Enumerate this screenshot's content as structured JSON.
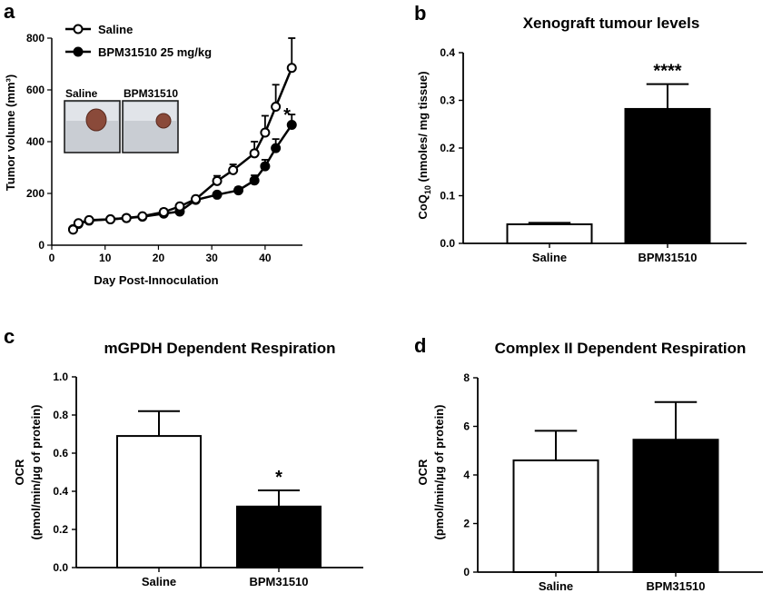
{
  "figure": {
    "panel_letters": [
      "a",
      "b",
      "c",
      "d"
    ]
  },
  "chart_data": [
    {
      "panel": "a",
      "type": "line",
      "title": "",
      "xlabel": "Day Post-Innoculation",
      "ylabel": "Tumor volume (mm³)",
      "xlim": [
        0,
        47
      ],
      "ylim": [
        0,
        800
      ],
      "xticks": [
        0,
        10,
        20,
        30,
        40
      ],
      "yticks": [
        0,
        200,
        400,
        600,
        800
      ],
      "legend_position": "top-left",
      "inset_labels": [
        "Saline",
        "BPM31510"
      ],
      "significance": "*",
      "series": [
        {
          "name": "Saline",
          "marker": "open-circle",
          "x": [
            4,
            5,
            7,
            11,
            14,
            17,
            21,
            24,
            27,
            31,
            34,
            38,
            40,
            42,
            45
          ],
          "y": [
            60,
            85,
            97,
            100,
            105,
            112,
            128,
            150,
            178,
            248,
            290,
            355,
            435,
            535,
            685
          ],
          "err": [
            5,
            8,
            8,
            8,
            8,
            8,
            12,
            10,
            12,
            20,
            22,
            45,
            65,
            85,
            115
          ]
        },
        {
          "name": "BPM31510 25 mg/kg",
          "marker": "filled-circle",
          "x": [
            4,
            5,
            7,
            11,
            14,
            17,
            21,
            24,
            27,
            31,
            35,
            38,
            40,
            42,
            45
          ],
          "y": [
            62,
            82,
            95,
            100,
            105,
            110,
            122,
            130,
            175,
            195,
            212,
            250,
            305,
            375,
            465
          ],
          "err": [
            5,
            6,
            6,
            6,
            6,
            6,
            8,
            8,
            10,
            10,
            12,
            20,
            25,
            35,
            40
          ]
        }
      ]
    },
    {
      "panel": "b",
      "type": "bar",
      "title": "Xenograft tumour levels",
      "ylabel_main": "CoQ",
      "ylabel_sub": "10",
      "ylabel_rest": " (nmoles/ mg tissue)",
      "xlabel": "",
      "categories": [
        "Saline",
        "BPM31510"
      ],
      "values": [
        0.04,
        0.282
      ],
      "errors": [
        0.003,
        0.052
      ],
      "fills": [
        "#ffffff",
        "#000000"
      ],
      "ylim": [
        0,
        0.4
      ],
      "yticks": [
        0.0,
        0.1,
        0.2,
        0.3,
        0.4
      ],
      "ytick_labels": [
        "0.0",
        "0.1",
        "0.2",
        "0.3",
        "0.4"
      ],
      "significance": [
        "",
        "****"
      ]
    },
    {
      "panel": "c",
      "type": "bar",
      "title": "mGPDH Dependent Respiration",
      "ylabel_line1": "OCR",
      "ylabel_line2": "(pmol/min/µg of protein)",
      "xlabel": "",
      "categories": [
        "Saline",
        "BPM31510"
      ],
      "values": [
        0.69,
        0.32
      ],
      "errors": [
        0.13,
        0.085
      ],
      "fills": [
        "#ffffff",
        "#000000"
      ],
      "ylim": [
        0,
        1.0
      ],
      "yticks": [
        0.0,
        0.2,
        0.4,
        0.6,
        0.8,
        1.0
      ],
      "ytick_labels": [
        "0.0",
        "0.2",
        "0.4",
        "0.6",
        "0.8",
        "1.0"
      ],
      "significance": [
        "",
        "*"
      ]
    },
    {
      "panel": "d",
      "type": "bar",
      "title": "Complex II Dependent Respiration",
      "ylabel_line1": "OCR",
      "ylabel_line2": "(pmol/min/µg of protein)",
      "xlabel": "",
      "categories": [
        "Saline",
        "BPM31510"
      ],
      "values": [
        4.6,
        5.45
      ],
      "errors": [
        1.22,
        1.55
      ],
      "fills": [
        "#ffffff",
        "#000000"
      ],
      "ylim": [
        0,
        8
      ],
      "yticks": [
        0,
        2,
        4,
        6,
        8
      ],
      "ytick_labels": [
        "0",
        "2",
        "4",
        "6",
        "8"
      ],
      "significance": [
        "",
        ""
      ]
    }
  ]
}
